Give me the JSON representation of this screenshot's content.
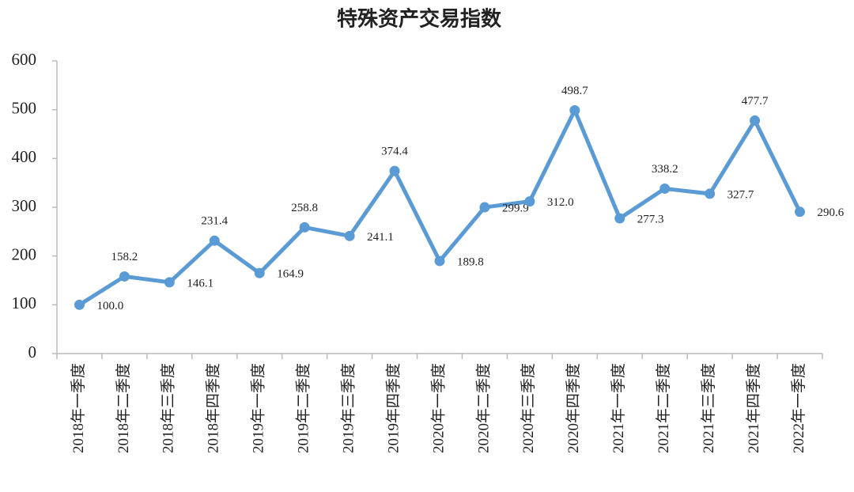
{
  "chart_data": {
    "type": "line",
    "title": "特殊资产交易指数",
    "categories": [
      "2018年一季度",
      "2018年二季度",
      "2018年三季度",
      "2018年四季度",
      "2019年一季度",
      "2019年二季度",
      "2019年三季度",
      "2019年四季度",
      "2020年一季度",
      "2020年二季度",
      "2020年三季度",
      "2020年四季度",
      "2021年一季度",
      "2021年二季度",
      "2021年三季度",
      "2021年四季度",
      "2022年一季度"
    ],
    "values": [
      100.0,
      158.2,
      146.1,
      231.4,
      164.9,
      258.8,
      241.1,
      374.4,
      189.8,
      299.9,
      312.0,
      498.7,
      277.3,
      338.2,
      327.7,
      477.7,
      290.6
    ],
    "value_labels": [
      "100.0",
      "158.2",
      "146.1",
      "231.4",
      "164.9",
      "258.8",
      "241.1",
      "374.4",
      "189.8",
      "299.9",
      "312.0",
      "498.7",
      "277.3",
      "338.2",
      "327.7",
      "477.7",
      "290.6"
    ],
    "color": "#5b9bd5",
    "ylim": [
      0,
      600
    ],
    "yticks": [
      0,
      100,
      200,
      300,
      400,
      500,
      600
    ],
    "grid": false
  }
}
